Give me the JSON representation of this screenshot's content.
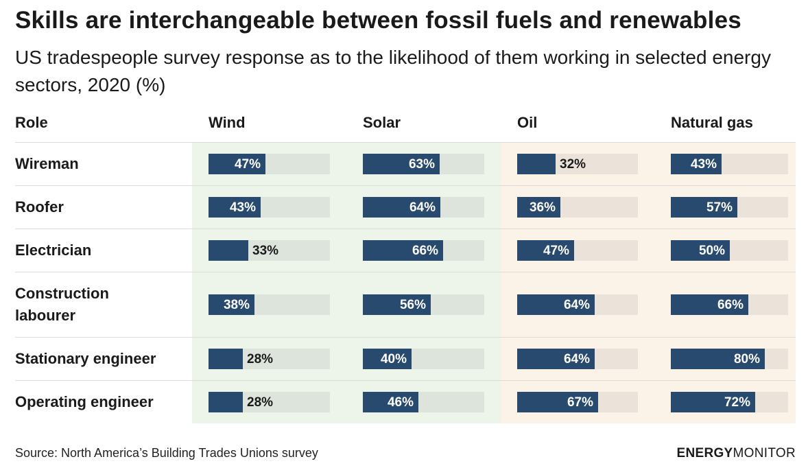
{
  "header": {
    "title": "Skills are interchangeable between fossil fuels and renewables",
    "subtitle": "US tradespeople survey response as to the likelihood of them working in selected energy sectors, 2020 (%)"
  },
  "footer": {
    "source": "Source: North America’s Building Trades Unions survey",
    "logo_bold": "ENERGY",
    "logo_light": "MONITOR"
  },
  "colors": {
    "bar": "#284a6e",
    "renewables_bg": "#edf4ea",
    "renewables_track": "#dce4dc",
    "fossil_bg": "#fcf3e8",
    "fossil_track": "#ebe3da"
  },
  "chart_data": {
    "type": "bar",
    "row_header": "Role",
    "categories": [
      "Wireman",
      "Roofer",
      "Electrician",
      "Construction labourer",
      "Stationary engineer",
      "Operating engineer"
    ],
    "category_lines": [
      [
        "Wireman"
      ],
      [
        "Roofer"
      ],
      [
        "Electrician"
      ],
      [
        "Construction",
        "labourer"
      ],
      [
        "Stationary engineer"
      ],
      [
        "Operating engineer"
      ]
    ],
    "series": [
      {
        "name": "Wind",
        "group": "renewables",
        "values": [
          47,
          43,
          33,
          38,
          28,
          28
        ]
      },
      {
        "name": "Solar",
        "group": "renewables",
        "values": [
          63,
          64,
          66,
          56,
          40,
          46
        ]
      },
      {
        "name": "Oil",
        "group": "fossil",
        "values": [
          32,
          36,
          47,
          64,
          64,
          67
        ]
      },
      {
        "name": "Natural gas",
        "group": "fossil",
        "values": [
          43,
          57,
          50,
          66,
          80,
          72
        ]
      }
    ],
    "value_suffix": "%",
    "ylim": [
      0,
      100
    ]
  }
}
